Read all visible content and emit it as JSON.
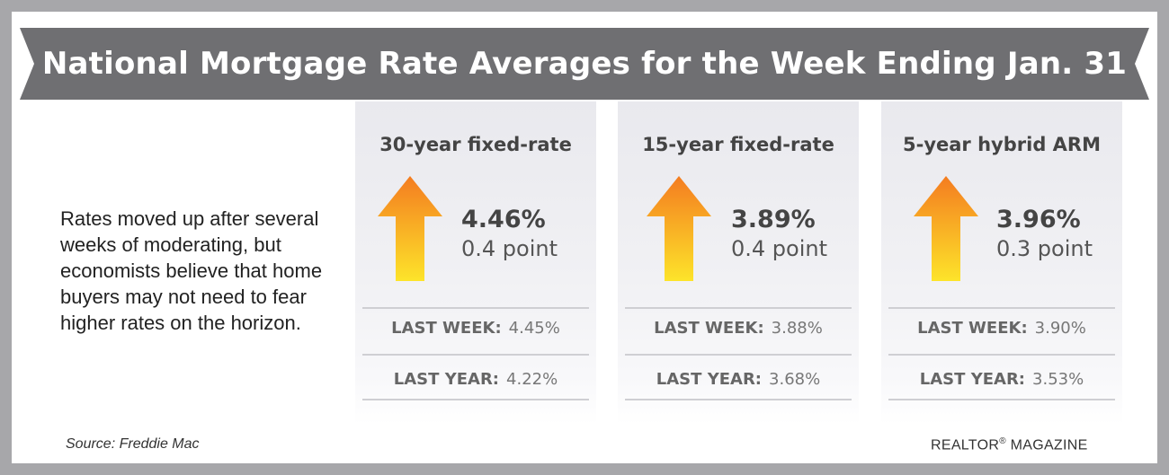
{
  "banner": {
    "title": "National Mortgage Rate Averages for the Week Ending Jan. 31",
    "color": "#6f6f72"
  },
  "intro": {
    "text": "Rates moved up after several weeks of moderating, but economists believe that home buyers may not need to fear higher rates on the horizon."
  },
  "cards": [
    {
      "title": "30-year fixed-rate",
      "direction": "up",
      "rate": "4.46%",
      "change": "0.4 point",
      "last_week_label": "LAST WEEK:",
      "last_week_value": "4.45%",
      "last_year_label": "LAST YEAR:",
      "last_year_value": "4.22%"
    },
    {
      "title": "15-year fixed-rate",
      "direction": "up",
      "rate": "3.89%",
      "change": "0.4 point",
      "last_week_label": "LAST WEEK:",
      "last_week_value": "3.88%",
      "last_year_label": "LAST YEAR:",
      "last_year_value": "3.68%"
    },
    {
      "title": "5-year hybrid ARM",
      "direction": "up",
      "rate": "3.96%",
      "change": "0.3 point",
      "last_week_label": "LAST WEEK:",
      "last_week_value": "3.90%",
      "last_year_label": "LAST YEAR:",
      "last_year_value": "3.53%"
    }
  ],
  "arrow_colors": {
    "top": "#f47c20",
    "bottom": "#fde42a"
  },
  "footer": {
    "source": "Source: Freddie Mac",
    "brand": "REALTOR",
    "brand_mark": "®",
    "brand_suffix": " MAGAZINE"
  }
}
